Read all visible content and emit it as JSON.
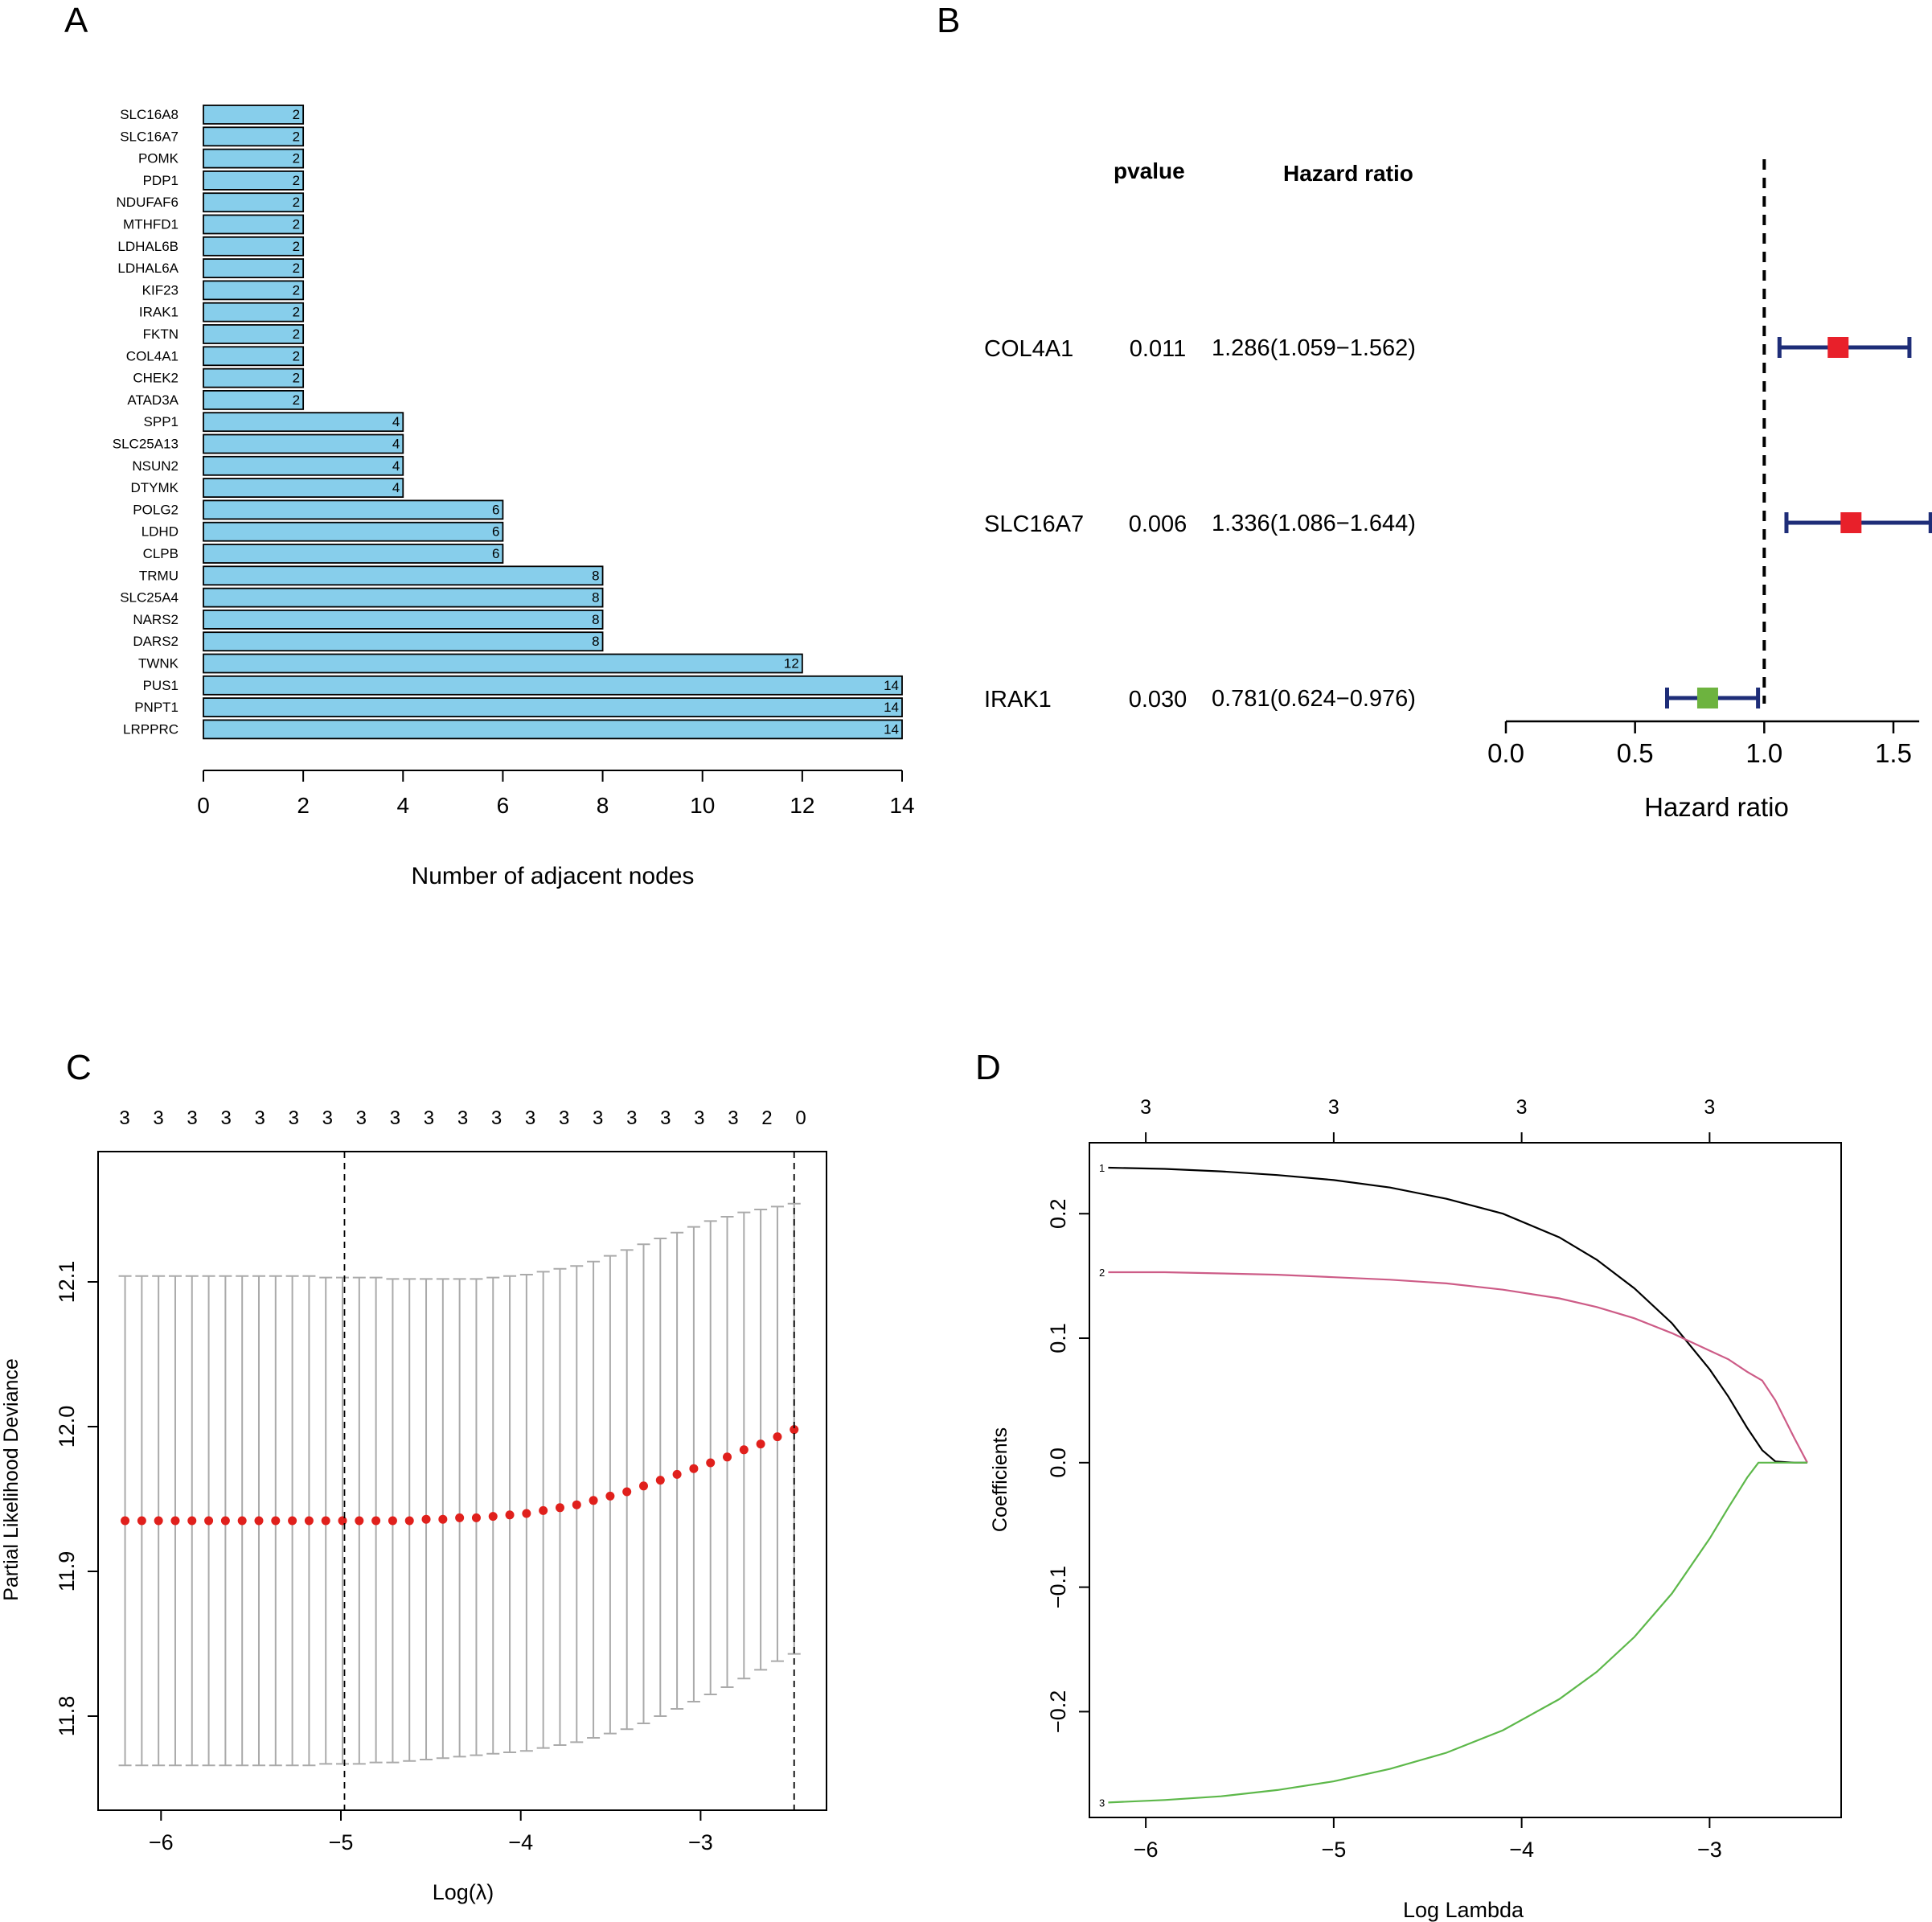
{
  "colors": {
    "bar_fill": "#87CEEB",
    "hr_red": "#E8202A",
    "hr_green": "#6DB33F",
    "ci_navy": "#1E2D78",
    "cv_red": "#E0201C",
    "cv_grey": "#AAAAAA",
    "line_black": "#000000",
    "line_pink": "#CD5C87",
    "line_green": "#5DB84A"
  },
  "panels": {
    "A": "A",
    "B": "B",
    "C": "C",
    "D": "D"
  },
  "chart_data": [
    {
      "panel": "A",
      "type": "bar",
      "orientation": "horizontal",
      "categories": [
        "SLC16A8",
        "SLC16A7",
        "POMK",
        "PDP1",
        "NDUFAF6",
        "MTHFD1",
        "LDHAL6B",
        "LDHAL6A",
        "KIF23",
        "IRAK1",
        "FKTN",
        "COL4A1",
        "CHEK2",
        "ATAD3A",
        "SPP1",
        "SLC25A13",
        "NSUN2",
        "DTYMK",
        "POLG2",
        "LDHD",
        "CLPB",
        "TRMU",
        "SLC25A4",
        "NARS2",
        "DARS2",
        "TWNK",
        "PUS1",
        "PNPT1",
        "LRPPRC"
      ],
      "values": [
        2,
        2,
        2,
        2,
        2,
        2,
        2,
        2,
        2,
        2,
        2,
        2,
        2,
        2,
        4,
        4,
        4,
        4,
        6,
        6,
        6,
        8,
        8,
        8,
        8,
        12,
        14,
        14,
        14
      ],
      "xlabel": "Number of adjacent nodes",
      "xlim": [
        0,
        14
      ],
      "xticks": [
        0,
        2,
        4,
        6,
        8,
        10,
        12,
        14
      ]
    },
    {
      "panel": "B",
      "type": "forest",
      "header_pvalue": "pvalue",
      "header_hr": "Hazard ratio",
      "rows": [
        {
          "gene": "COL4A1",
          "pvalue": "0.011",
          "hr_text": "1.286(1.059−1.562)",
          "hr": 1.286,
          "lower": 1.059,
          "upper": 1.562,
          "color": "#E8202A"
        },
        {
          "gene": "SLC16A7",
          "pvalue": "0.006",
          "hr_text": "1.336(1.086−1.644)",
          "hr": 1.336,
          "lower": 1.086,
          "upper": 1.644,
          "color": "#E8202A"
        },
        {
          "gene": "IRAK1",
          "pvalue": "0.030",
          "hr_text": "0.781(0.624−0.976)",
          "hr": 0.781,
          "lower": 0.624,
          "upper": 0.976,
          "color": "#6DB33F"
        }
      ],
      "reference": 1.0,
      "xlabel": "Hazard ratio",
      "xlim": [
        0,
        1.6
      ],
      "xticks": [
        0.0,
        0.5,
        1.0,
        1.5
      ],
      "xtick_labels": [
        "0.0",
        "0.5",
        "1.0",
        "1.5"
      ]
    },
    {
      "panel": "C",
      "type": "scatter",
      "title": "",
      "xlabel": "Log(λ)",
      "ylabel": "Partial Likelihood Deviance",
      "xlim": [
        -6.35,
        -2.3
      ],
      "ylim": [
        11.735,
        12.19
      ],
      "xticks": [
        -6,
        -5,
        -4,
        -3
      ],
      "xtick_labels": [
        "−6",
        "−5",
        "−4",
        "−3"
      ],
      "yticks": [
        11.8,
        11.9,
        12.0,
        12.1
      ],
      "ytick_labels": [
        "11.8",
        "11.9",
        "12.0",
        "12.1"
      ],
      "top_counts": [
        "3",
        "3",
        "3",
        "3",
        "3",
        "3",
        "3",
        "3",
        "3",
        "3",
        "3",
        "3",
        "3",
        "3",
        "3",
        "3",
        "3",
        "3",
        "3",
        "2",
        "0"
      ],
      "vlines": [
        -4.98,
        -2.48
      ],
      "x": [
        -6.2,
        -6.107,
        -6.014,
        -5.921,
        -5.828,
        -5.735,
        -5.642,
        -5.549,
        -5.456,
        -5.363,
        -5.27,
        -5.177,
        -5.084,
        -4.991,
        -4.898,
        -4.805,
        -4.712,
        -4.619,
        -4.526,
        -4.433,
        -4.34,
        -4.247,
        -4.154,
        -4.061,
        -3.968,
        -3.875,
        -3.782,
        -3.689,
        -3.596,
        -3.503,
        -3.41,
        -3.317,
        -3.224,
        -3.131,
        -3.038,
        -2.945,
        -2.852,
        -2.759,
        -2.666,
        -2.573,
        -2.48
      ],
      "y": [
        11.935,
        11.935,
        11.935,
        11.935,
        11.935,
        11.935,
        11.935,
        11.935,
        11.935,
        11.935,
        11.935,
        11.935,
        11.935,
        11.935,
        11.935,
        11.935,
        11.935,
        11.935,
        11.936,
        11.936,
        11.937,
        11.937,
        11.938,
        11.939,
        11.94,
        11.942,
        11.944,
        11.946,
        11.949,
        11.952,
        11.955,
        11.959,
        11.963,
        11.967,
        11.971,
        11.975,
        11.979,
        11.984,
        11.988,
        11.993,
        11.998
      ],
      "y_upper": [
        12.104,
        12.104,
        12.104,
        12.104,
        12.104,
        12.104,
        12.104,
        12.104,
        12.104,
        12.104,
        12.104,
        12.104,
        12.103,
        12.103,
        12.103,
        12.103,
        12.102,
        12.102,
        12.102,
        12.102,
        12.102,
        12.102,
        12.103,
        12.104,
        12.105,
        12.107,
        12.109,
        12.111,
        12.114,
        12.118,
        12.122,
        12.126,
        12.13,
        12.134,
        12.138,
        12.142,
        12.145,
        12.148,
        12.15,
        12.152,
        12.154
      ],
      "y_lower": [
        11.766,
        11.766,
        11.766,
        11.766,
        11.766,
        11.766,
        11.766,
        11.766,
        11.766,
        11.766,
        11.766,
        11.766,
        11.767,
        11.767,
        11.767,
        11.768,
        11.768,
        11.769,
        11.77,
        11.771,
        11.772,
        11.773,
        11.774,
        11.775,
        11.776,
        11.778,
        11.78,
        11.782,
        11.785,
        11.788,
        11.791,
        11.795,
        11.8,
        11.805,
        11.81,
        11.815,
        11.82,
        11.826,
        11.832,
        11.838,
        11.843
      ],
      "point_color": "#E0201C",
      "errorbar_color": "#AAAAAA"
    },
    {
      "panel": "D",
      "type": "line",
      "xlabel": "Log Lambda",
      "ylabel": "Coefficients",
      "xlim": [
        -6.3,
        -2.3
      ],
      "ylim": [
        -0.285,
        0.257
      ],
      "xticks": [
        -6,
        -5,
        -4,
        -3
      ],
      "xtick_labels": [
        "−6",
        "−5",
        "−4",
        "−3"
      ],
      "yticks": [
        -0.2,
        -0.1,
        0.0,
        0.1,
        0.2
      ],
      "ytick_labels": [
        "−0.2",
        "−0.1",
        "0.0",
        "0.1",
        "0.2"
      ],
      "top_ticks": [
        -6,
        -5,
        -4,
        -3
      ],
      "top_labels": [
        "3",
        "3",
        "3",
        "3"
      ],
      "series": [
        {
          "name": "1",
          "color": "#000000",
          "x": [
            -6.2,
            -5.9,
            -5.6,
            -5.3,
            -5.0,
            -4.7,
            -4.4,
            -4.1,
            -3.8,
            -3.6,
            -3.4,
            -3.2,
            -3.0,
            -2.9,
            -2.8,
            -2.72,
            -2.65,
            -2.55,
            -2.48
          ],
          "y": [
            0.237,
            0.236,
            0.234,
            0.231,
            0.227,
            0.221,
            0.212,
            0.2,
            0.181,
            0.163,
            0.14,
            0.112,
            0.075,
            0.053,
            0.028,
            0.01,
            0.001,
            0.0,
            0.0
          ]
        },
        {
          "name": "2",
          "color": "#CD5C87",
          "x": [
            -6.2,
            -5.9,
            -5.6,
            -5.3,
            -5.0,
            -4.7,
            -4.4,
            -4.1,
            -3.8,
            -3.6,
            -3.4,
            -3.2,
            -3.0,
            -2.9,
            -2.8,
            -2.72,
            -2.65,
            -2.55,
            -2.48
          ],
          "y": [
            0.153,
            0.153,
            0.152,
            0.151,
            0.149,
            0.147,
            0.144,
            0.139,
            0.132,
            0.125,
            0.116,
            0.104,
            0.09,
            0.083,
            0.073,
            0.066,
            0.05,
            0.02,
            0.0
          ]
        },
        {
          "name": "3",
          "color": "#5DB84A",
          "x": [
            -6.2,
            -5.9,
            -5.6,
            -5.3,
            -5.0,
            -4.7,
            -4.4,
            -4.1,
            -3.8,
            -3.6,
            -3.4,
            -3.2,
            -3.0,
            -2.9,
            -2.8,
            -2.74,
            -2.65,
            -2.55,
            -2.48
          ],
          "y": [
            -0.273,
            -0.271,
            -0.268,
            -0.263,
            -0.256,
            -0.246,
            -0.233,
            -0.215,
            -0.19,
            -0.168,
            -0.14,
            -0.105,
            -0.061,
            -0.036,
            -0.012,
            0.0,
            0.0,
            0.0,
            0.0
          ]
        }
      ]
    }
  ]
}
